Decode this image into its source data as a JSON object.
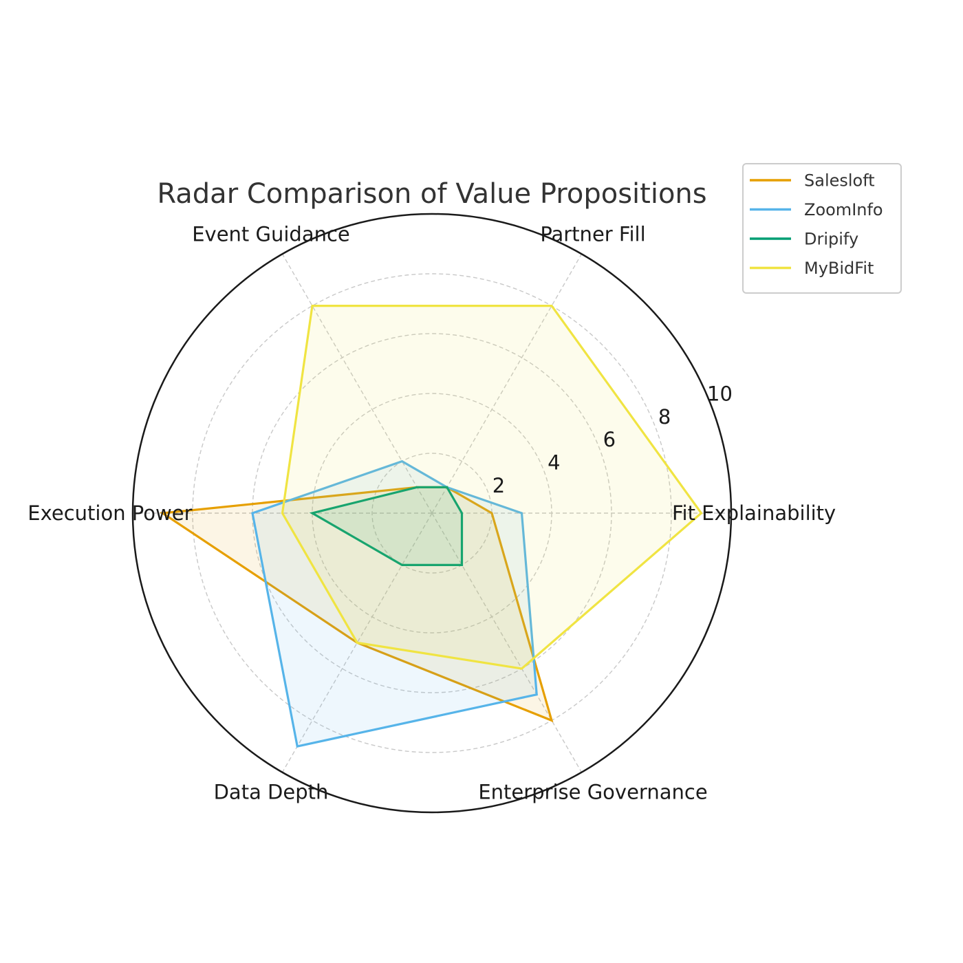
{
  "chart_data": {
    "type": "radar",
    "title": "Radar Comparison of Value Propositions",
    "categories": [
      "Fit Explainability",
      "Partner Fill",
      "Event Guidance",
      "Execution Power",
      "Data Depth",
      "Enterprise Governance"
    ],
    "rlim": [
      0,
      10
    ],
    "rticks": [
      2,
      4,
      6,
      8,
      10
    ],
    "grid": true,
    "legend_position": "top-right",
    "series": [
      {
        "name": "Salesloft",
        "color": "#E69F00",
        "values": [
          2,
          1,
          1,
          9,
          5,
          8
        ]
      },
      {
        "name": "ZoomInfo",
        "color": "#56B4E9",
        "values": [
          3,
          1,
          2,
          6,
          9,
          7
        ]
      },
      {
        "name": "Dripify",
        "color": "#009E73",
        "values": [
          1,
          1,
          1,
          4,
          2,
          2
        ]
      },
      {
        "name": "MyBidFit",
        "color": "#F0E442",
        "values": [
          9,
          8,
          8,
          5,
          5,
          6
        ]
      }
    ]
  }
}
